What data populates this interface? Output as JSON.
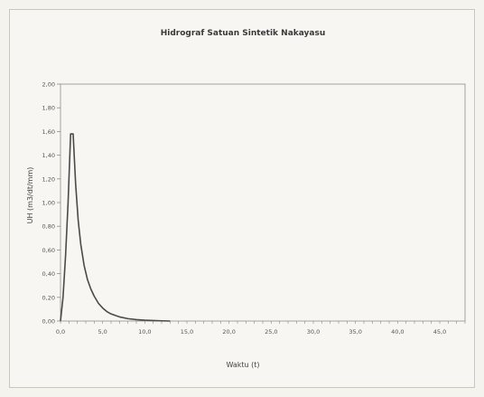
{
  "chart_data": {
    "type": "line",
    "title": "Hidrograf Satuan Sintetik Nakayasu",
    "xlabel": "Waktu (t)",
    "ylabel": "UH (m3/dt/mm)",
    "xlim": [
      0,
      48
    ],
    "ylim": [
      0,
      2.0
    ],
    "x_ticks": [
      "0,0",
      "5,0",
      "10,0",
      "15,0",
      "20,0",
      "25,0",
      "30,0",
      "35,0",
      "40,0",
      "45,0"
    ],
    "y_ticks": [
      "0,00",
      "0,20",
      "0,40",
      "0,60",
      "0,80",
      "1,00",
      "1,20",
      "1,40",
      "1,60",
      "1,80",
      "2,00"
    ],
    "grid": false,
    "legend": "none",
    "line_color": "#4a4a4a",
    "series": [
      {
        "x": [
          0,
          0.3,
          0.6,
          0.9,
          1.2,
          1.5,
          1.8,
          2.1,
          2.4,
          2.8,
          3.2,
          3.6,
          4.0,
          4.5,
          5.0,
          5.5,
          6.0,
          7.0,
          8.0,
          9.0,
          10.0,
          11.0,
          12.0,
          13.0
        ],
        "y": [
          0.0,
          0.2,
          0.55,
          1.0,
          1.58,
          1.58,
          1.15,
          0.85,
          0.65,
          0.47,
          0.35,
          0.27,
          0.21,
          0.15,
          0.11,
          0.08,
          0.06,
          0.035,
          0.02,
          0.012,
          0.007,
          0.004,
          0.002,
          0.0
        ]
      }
    ]
  }
}
